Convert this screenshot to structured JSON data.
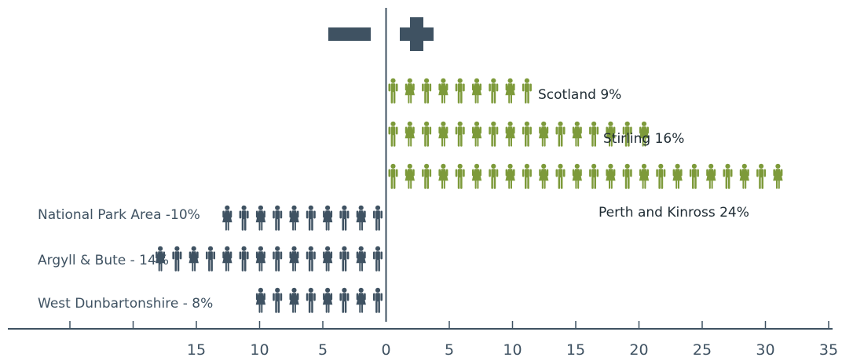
{
  "chart_data": {
    "type": "bar",
    "orientation": "horizontal",
    "style": "pictogram (one person icon per 1 percentage point, alternating male/female)",
    "categories": [
      "Scotland",
      "Stirling",
      "Perth and Kinross",
      "National Park Area",
      "Argyll & Bute",
      "West Dunbartonshire"
    ],
    "values": [
      9,
      16,
      24,
      -10,
      -14,
      -8
    ],
    "labels": [
      "Scotland 9%",
      "Stirling 16%",
      "Perth and Kinross 24%",
      "National Park Area -10%",
      "Argyll & Bute - 14%",
      "West Dunbartonshire - 8%"
    ],
    "negative_symbol": "minus-sign",
    "positive_symbol": "plus-sign",
    "xlim": [
      -25,
      35
    ],
    "x_tick_labels_right": [
      "0",
      "5",
      "10",
      "15",
      "20",
      "25",
      "30",
      "35"
    ],
    "x_tick_labels_left": [
      "15",
      "10",
      "5"
    ],
    "grid": false,
    "colors": {
      "positive": "#7d9a3a",
      "negative": "#3f5262",
      "axis": "#3f5262"
    }
  }
}
